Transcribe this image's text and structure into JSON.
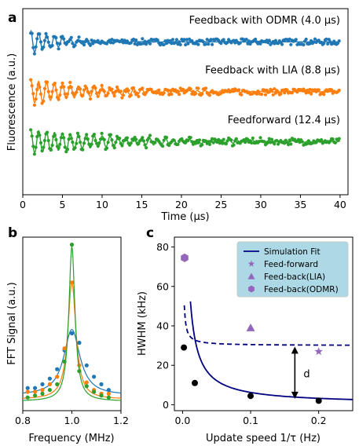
{
  "chart_data": [
    {
      "panel": "a",
      "type": "scatter",
      "xlabel": "Time (μs)",
      "ylabel": "Fluorescence (a.u.)",
      "xlim": [
        0,
        41
      ],
      "xticks": [
        "0",
        "5",
        "10",
        "15",
        "20",
        "25",
        "30",
        "35",
        "40"
      ],
      "grid": false,
      "series": [
        {
          "name": "Feedback with ODMR (4.0 μs)",
          "color": "#1f77b4",
          "t_start": 1.0,
          "t_end": 40.0,
          "offset": 0.8,
          "amplitude": 1.0,
          "decay_us": 4.0,
          "frequency_MHz": 1.0
        },
        {
          "name": "Feedback with LIA (8.8 μs)",
          "color": "#ff7f0e",
          "t_start": 1.0,
          "t_end": 40.0,
          "offset": 0.5,
          "amplitude": 1.0,
          "decay_us": 8.8,
          "frequency_MHz": 1.0
        },
        {
          "name": "Feedforward (12.4 μs)",
          "color": "#2ca02c",
          "t_start": 1.0,
          "t_end": 40.0,
          "offset": 0.2,
          "amplitude": 1.0,
          "decay_us": 12.4,
          "frequency_MHz": 1.0
        }
      ]
    },
    {
      "panel": "b",
      "type": "line",
      "xlabel": "Frequency (MHz)",
      "ylabel": "FFT Signal (a.u.)",
      "xlim": [
        0.8,
        1.2
      ],
      "xticks": [
        "0.8",
        "1.0",
        "1.2"
      ],
      "series": [
        {
          "color": "#1f77b4",
          "center": 1.0,
          "peak": 0.35,
          "baseline": 0.06,
          "hwhm": 0.04,
          "x": [
            0.82,
            0.85,
            0.88,
            0.91,
            0.94,
            0.97,
            1.0,
            1.03,
            1.06,
            1.09,
            1.12,
            1.15
          ],
          "y": [
            0.1,
            0.1,
            0.12,
            0.15,
            0.2,
            0.3,
            0.39,
            0.34,
            0.22,
            0.16,
            0.12,
            0.09
          ]
        },
        {
          "color": "#ff7f0e",
          "center": 1.0,
          "peak": 0.62,
          "baseline": 0.04,
          "hwhm": 0.02,
          "x": [
            0.82,
            0.85,
            0.88,
            0.91,
            0.94,
            0.97,
            1.0,
            1.03,
            1.06,
            1.09,
            1.12,
            1.15
          ],
          "y": [
            0.08,
            0.08,
            0.09,
            0.12,
            0.16,
            0.31,
            0.66,
            0.22,
            0.13,
            0.09,
            0.07,
            0.07
          ]
        },
        {
          "color": "#2ca02c",
          "center": 1.0,
          "peak": 0.82,
          "baseline": 0.03,
          "hwhm": 0.015,
          "x": [
            0.82,
            0.85,
            0.88,
            0.91,
            0.94,
            0.97,
            1.0,
            1.03,
            1.06,
            1.09,
            1.12,
            1.15
          ],
          "y": [
            0.05,
            0.06,
            0.07,
            0.09,
            0.12,
            0.24,
            0.86,
            0.19,
            0.11,
            0.08,
            0.06,
            0.05
          ]
        }
      ]
    },
    {
      "panel": "c",
      "type": "line",
      "xlabel": "Update speed 1/τ (Hz)",
      "ylabel": "HWHM (kHz)",
      "xlim": [
        -0.012,
        0.25
      ],
      "ylim": [
        -3,
        85
      ],
      "xticks": [
        0.0,
        0.1,
        0.2
      ],
      "yticks": [
        0,
        20,
        40,
        60,
        80
      ],
      "legend_position": "top-right",
      "fit_solid": {
        "label": "Simulation Fit",
        "color": "#000080",
        "a": 0.6,
        "b": 0.25
      },
      "fit_dashed": {
        "color": "#000080",
        "a": 30.0,
        "b": 0.25
      },
      "sim_points": {
        "x": [
          0.002,
          0.018,
          0.1,
          0.2
        ],
        "y": [
          29,
          11,
          4.5,
          2
        ]
      },
      "measured": [
        {
          "label": "Feed-forward",
          "marker": "star",
          "color": "#9467bd",
          "x": 0.2,
          "y": 27
        },
        {
          "label": "Feed-back(LIA)",
          "marker": "triangle",
          "color": "#9467bd",
          "x": 0.1,
          "y": 39
        },
        {
          "label": "Feed-back(ODMR)",
          "marker": "hexagon",
          "color": "#9467bd",
          "x": 0.003,
          "y": 74.5
        }
      ],
      "annotation": {
        "text": "d",
        "x": 0.165,
        "y_top": 29.5,
        "y_bottom": 3.0
      }
    }
  ]
}
